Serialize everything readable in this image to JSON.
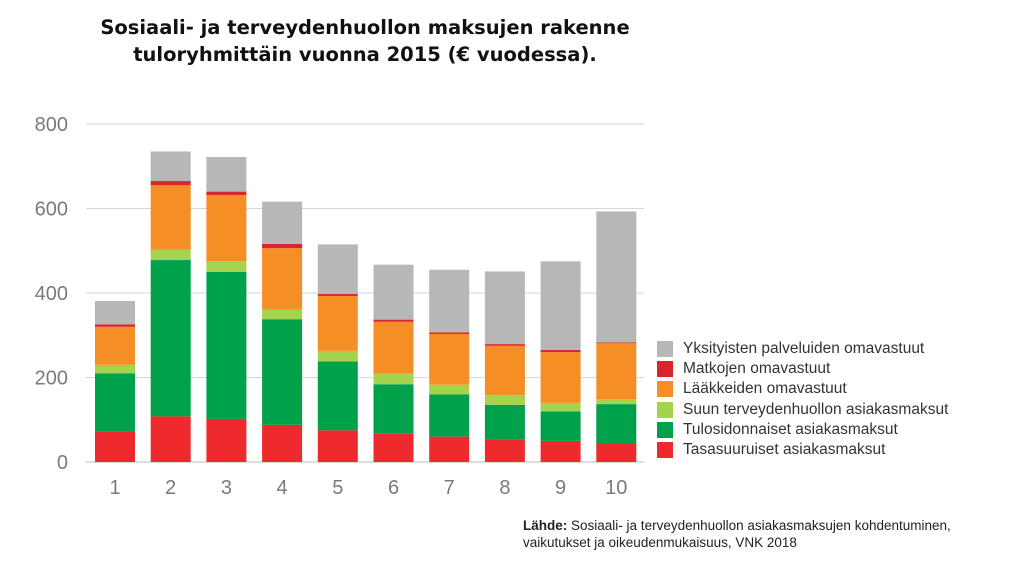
{
  "title_line1": "Sosiaali- ja terveydenhuollon maksujen rakenne",
  "title_line2": "tuloryhmittäin vuonna 2015 (€ vuodessa).",
  "source": {
    "label": "Lähde:",
    "line1": "Sosiaali- ja terveydenhuollon asiakasmaksujen kohdentuminen,",
    "line2": "vaikutukset ja oikeudenmukaisuus, VNK 2018"
  },
  "chart_data": {
    "type": "bar",
    "stacked": true,
    "title": "Sosiaali- ja terveydenhuollon maksujen rakenne tuloryhmittäin vuonna 2015 (€ vuodessa).",
    "categories": [
      "1",
      "2",
      "3",
      "4",
      "5",
      "6",
      "7",
      "8",
      "9",
      "10"
    ],
    "ylim": [
      0,
      800
    ],
    "yticks": [
      "0",
      "200",
      "400",
      "600",
      "800"
    ],
    "grid": true,
    "legend_position": "right",
    "series": [
      {
        "name": "Tasasuuruiset asiakasmaksut",
        "color": "#ee2a2e",
        "values": [
          72,
          108,
          102,
          88,
          75,
          67,
          60,
          53,
          50,
          45
        ]
      },
      {
        "name": "Tulosidonnaiset asiakasmaksut",
        "color": "#00a14b",
        "values": [
          138,
          370,
          348,
          250,
          163,
          117,
          100,
          82,
          70,
          92
        ]
      },
      {
        "name": "Suun terveydenhuollon asiakasmaksut",
        "color": "#a6d34e",
        "values": [
          20,
          25,
          25,
          23,
          25,
          25,
          23,
          23,
          20,
          12
        ]
      },
      {
        "name": "Lääkkeiden omavastuut",
        "color": "#f68e26",
        "values": [
          90,
          152,
          157,
          145,
          130,
          123,
          120,
          117,
          120,
          132
        ]
      },
      {
        "name": "Matkojen omavastuut",
        "color": "#d7262d",
        "values": [
          6,
          10,
          8,
          10,
          5,
          5,
          4,
          4,
          5,
          2
        ]
      },
      {
        "name": "Yksityisten palveluiden omavastuut",
        "color": "#b7b7b7",
        "values": [
          55,
          70,
          82,
          100,
          117,
          130,
          148,
          172,
          210,
          310
        ]
      }
    ]
  }
}
